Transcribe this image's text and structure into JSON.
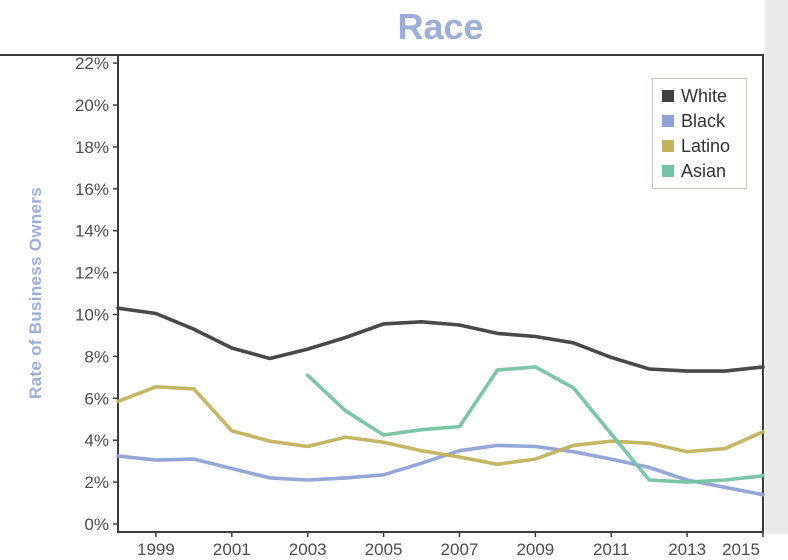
{
  "chart_data": {
    "type": "line",
    "title": "Race",
    "ylabel": "Rate of Business Owners",
    "grid": false,
    "legend_position": "top-right",
    "xlim": [
      1998,
      2015
    ],
    "ylim": [
      0,
      22.4
    ],
    "y_tick_values": [
      0,
      2,
      4,
      6,
      8,
      10,
      12,
      14,
      16,
      18,
      20,
      22
    ],
    "y_tick_labels": [
      "0%",
      "2%",
      "4%",
      "6%",
      "8%",
      "10%",
      "12%",
      "14%",
      "16%",
      "18%",
      "20%",
      "22%"
    ],
    "x_ticks": [
      {
        "year": 1999,
        "label": "1999"
      },
      {
        "year": 2001,
        "label": "2001"
      },
      {
        "year": 2003,
        "label": "2003"
      },
      {
        "year": 2005,
        "label": "2005"
      },
      {
        "year": 2007,
        "label": "2007"
      },
      {
        "year": 2009,
        "label": "2009"
      },
      {
        "year": 2011,
        "label": "2011"
      },
      {
        "year": 2013,
        "label": "2013"
      },
      {
        "year": 2015,
        "label": "2015"
      }
    ],
    "series": [
      {
        "name": "White",
        "color": "#3f3f3f",
        "start_year": 1998,
        "values": [
          10.3,
          10.05,
          9.3,
          8.4,
          7.9,
          8.35,
          8.9,
          9.55,
          9.65,
          9.5,
          9.1,
          8.95,
          8.65,
          7.95,
          7.4,
          7.3,
          7.3,
          7.5
        ]
      },
      {
        "name": "Black",
        "color": "#8fa2d6",
        "start_year": 1998,
        "values": [
          3.25,
          3.05,
          3.1,
          2.65,
          2.2,
          2.1,
          2.2,
          2.35,
          2.9,
          3.5,
          3.75,
          3.7,
          3.45,
          3.1,
          2.7,
          2.1,
          1.75,
          1.4
        ]
      },
      {
        "name": "Latino",
        "color": "#c2b25c",
        "start_year": 1998,
        "values": [
          5.85,
          6.55,
          6.45,
          4.45,
          3.95,
          3.7,
          4.15,
          3.9,
          3.5,
          3.2,
          2.85,
          3.1,
          3.75,
          3.95,
          3.85,
          3.45,
          3.6,
          4.4
        ]
      },
      {
        "name": "Asian",
        "color": "#74c3a2",
        "start_year": 2003,
        "values": [
          7.1,
          5.4,
          4.25,
          4.5,
          4.65,
          7.35,
          7.5,
          6.5,
          4.3,
          2.1,
          2.0,
          2.1,
          2.3
        ]
      }
    ],
    "colors": {
      "title": "#9dafd9",
      "axis_text": "#4d4d4d",
      "frame": "#3c3c3c",
      "page_strip": "#eaeaea"
    }
  }
}
